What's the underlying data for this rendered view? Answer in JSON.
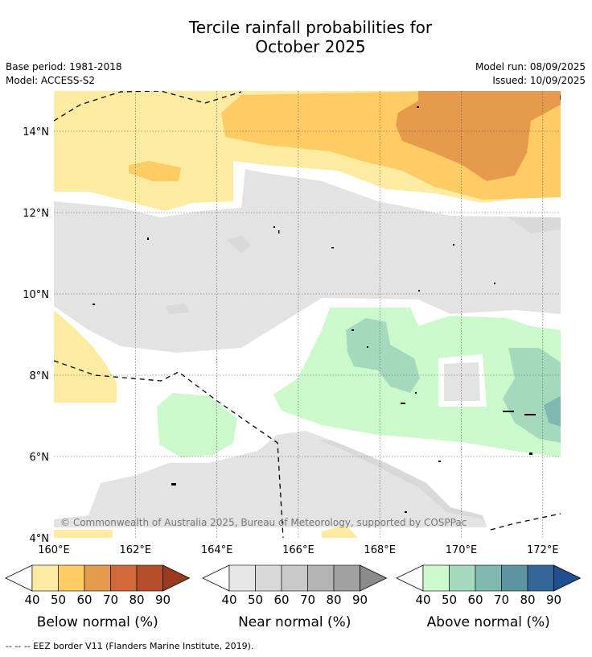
{
  "title": {
    "line1": "Tercile rainfall probabilities for",
    "line2": "October 2025"
  },
  "meta": {
    "base_period": "Base period: 1981-2018",
    "model": "Model: ACCESS-S2",
    "model_run": "Model run: 08/09/2025",
    "issued": "Issued: 10/09/2025"
  },
  "map": {
    "extent": {
      "lon": [
        160,
        172.5
      ],
      "lat": [
        4,
        15
      ]
    },
    "lat_ticks": [
      "4°N",
      "6°N",
      "8°N",
      "10°N",
      "12°N",
      "14°N"
    ],
    "lon_ticks": [
      "160°E",
      "162°E",
      "164°E",
      "166°E",
      "168°E",
      "170°E",
      "172°E"
    ],
    "gridlines": true,
    "copyright": "© Commonwealth of Australia 2025, Bureau of Meteorology, supported by COSPPac"
  },
  "colorbars": [
    {
      "title": "Below normal (%)",
      "ticks": [
        "40",
        "50",
        "60",
        "70",
        "80",
        "90"
      ],
      "colors": [
        "#feeba2",
        "#fecb64",
        "#e59a4c",
        "#d1683a",
        "#b54e2a",
        "#9a3a1e"
      ]
    },
    {
      "title": "Near normal (%)",
      "ticks": [
        "40",
        "50",
        "60",
        "70",
        "80",
        "90"
      ],
      "colors": [
        "#e6e6e6",
        "#d9d9d9",
        "#c9c9c9",
        "#b4b4b4",
        "#a0a0a0",
        "#8b8b8b"
      ]
    },
    {
      "title": "Above normal (%)",
      "ticks": [
        "40",
        "50",
        "60",
        "70",
        "80",
        "90"
      ],
      "colors": [
        "#ccf9cc",
        "#a4d9bd",
        "#7fb8ae",
        "#5e95a3",
        "#34669a",
        "#1f4f8c"
      ]
    }
  ],
  "footnote": "--  --  -- EEZ border V11 (Flanders Marine Institute, 2019)."
}
